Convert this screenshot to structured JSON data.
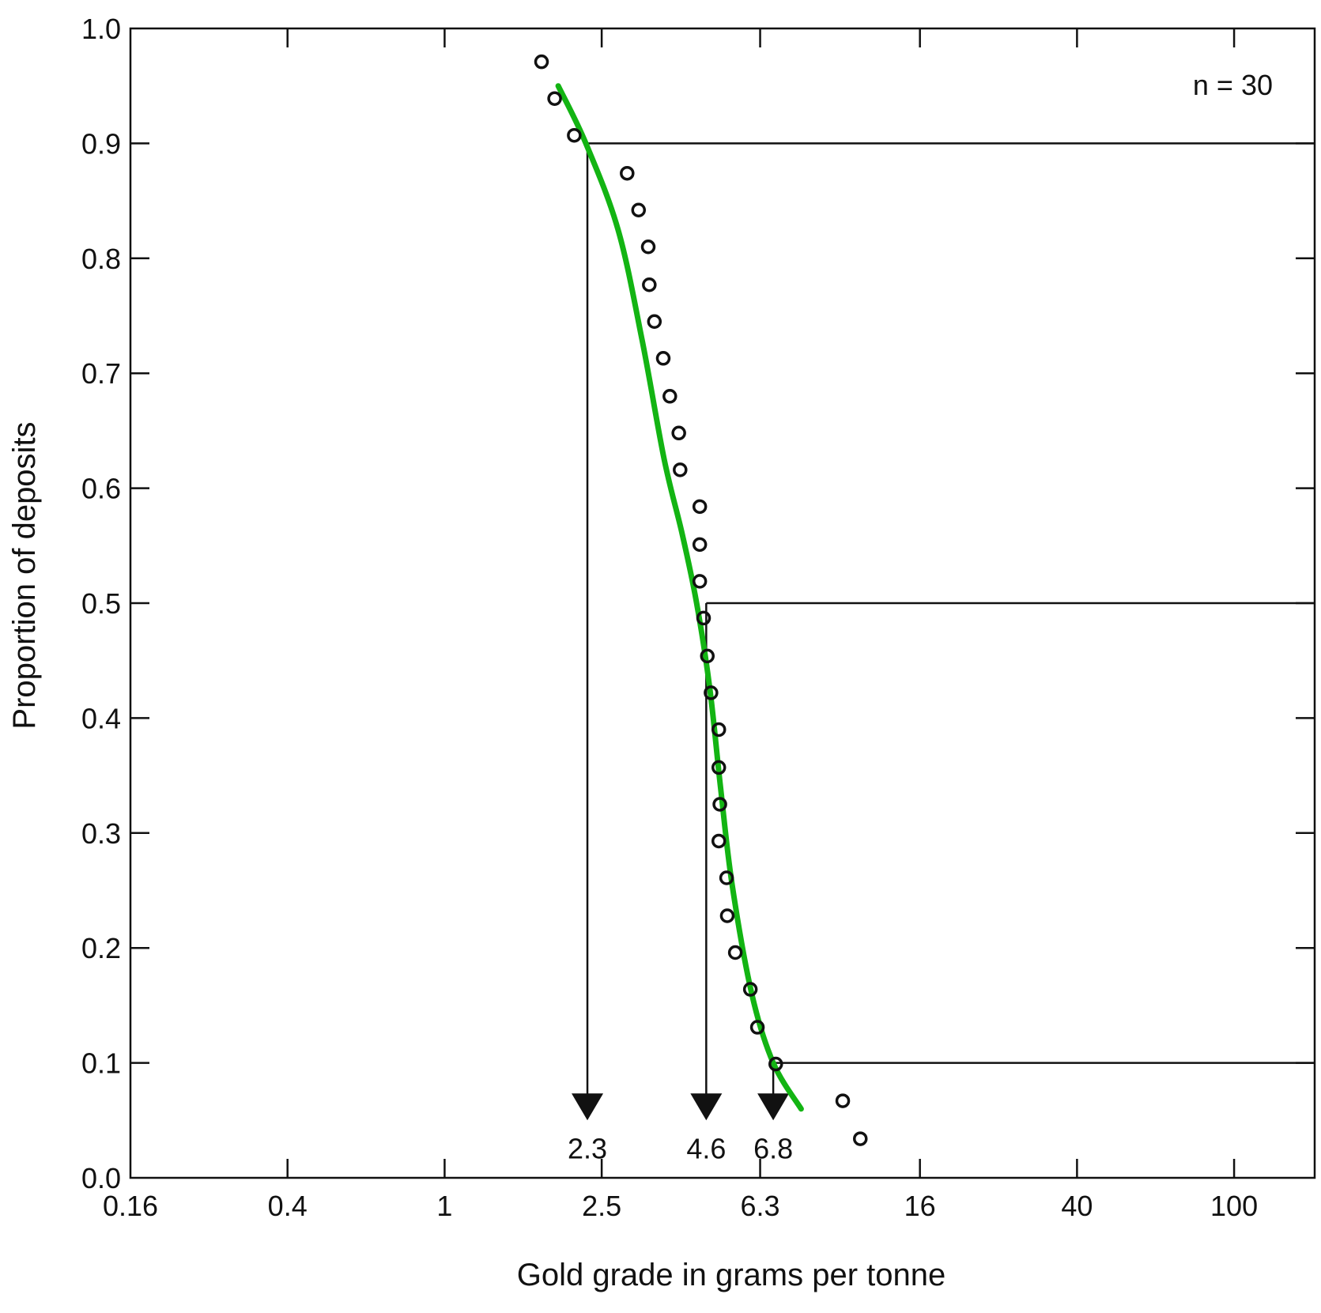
{
  "chart_data": {
    "type": "scatter",
    "xlabel": "Gold grade in grams per tonne",
    "ylabel": "Proportion of deposits",
    "x_scale": "log",
    "xlim": [
      0.16,
      160
    ],
    "ylim": [
      0,
      1.0
    ],
    "x_ticks": [
      {
        "value": 0.16,
        "label": "0.16"
      },
      {
        "value": 0.4,
        "label": "0.4"
      },
      {
        "value": 1,
        "label": "1"
      },
      {
        "value": 2.5,
        "label": "2.5"
      },
      {
        "value": 6.3,
        "label": "6.3"
      },
      {
        "value": 16,
        "label": "16"
      },
      {
        "value": 40,
        "label": "40"
      },
      {
        "value": 100,
        "label": "100"
      }
    ],
    "y_ticks": [
      {
        "value": 0.0,
        "label": "0.0"
      },
      {
        "value": 0.1,
        "label": "0.1"
      },
      {
        "value": 0.2,
        "label": "0.2"
      },
      {
        "value": 0.3,
        "label": "0.3"
      },
      {
        "value": 0.4,
        "label": "0.4"
      },
      {
        "value": 0.5,
        "label": "0.5"
      },
      {
        "value": 0.6,
        "label": "0.6"
      },
      {
        "value": 0.7,
        "label": "0.7"
      },
      {
        "value": 0.8,
        "label": "0.8"
      },
      {
        "value": 0.9,
        "label": "0.9"
      },
      {
        "value": 1.0,
        "label": "1.0"
      }
    ],
    "grid": false,
    "sample_size_label": "n = 30",
    "points": [
      {
        "x": 1.76,
        "y": 0.971
      },
      {
        "x": 1.9,
        "y": 0.939
      },
      {
        "x": 2.13,
        "y": 0.907
      },
      {
        "x": 2.9,
        "y": 0.874
      },
      {
        "x": 3.1,
        "y": 0.842
      },
      {
        "x": 3.28,
        "y": 0.81
      },
      {
        "x": 3.3,
        "y": 0.777
      },
      {
        "x": 3.4,
        "y": 0.745
      },
      {
        "x": 3.58,
        "y": 0.713
      },
      {
        "x": 3.72,
        "y": 0.68
      },
      {
        "x": 3.92,
        "y": 0.648
      },
      {
        "x": 3.95,
        "y": 0.616
      },
      {
        "x": 4.43,
        "y": 0.584
      },
      {
        "x": 4.43,
        "y": 0.551
      },
      {
        "x": 4.43,
        "y": 0.519
      },
      {
        "x": 4.53,
        "y": 0.487
      },
      {
        "x": 4.63,
        "y": 0.454
      },
      {
        "x": 4.73,
        "y": 0.422
      },
      {
        "x": 4.95,
        "y": 0.39
      },
      {
        "x": 4.95,
        "y": 0.357
      },
      {
        "x": 4.98,
        "y": 0.325
      },
      {
        "x": 4.95,
        "y": 0.293
      },
      {
        "x": 5.18,
        "y": 0.261
      },
      {
        "x": 5.2,
        "y": 0.228
      },
      {
        "x": 5.45,
        "y": 0.196
      },
      {
        "x": 5.95,
        "y": 0.164
      },
      {
        "x": 6.2,
        "y": 0.131
      },
      {
        "x": 6.9,
        "y": 0.099
      },
      {
        "x": 10.2,
        "y": 0.067
      },
      {
        "x": 11.3,
        "y": 0.034
      }
    ],
    "fitted_curve": {
      "color": "#13b413",
      "points": [
        {
          "x": 1.94,
          "y": 0.95
        },
        {
          "x": 2.28,
          "y": 0.9
        },
        {
          "x": 2.75,
          "y": 0.825
        },
        {
          "x": 3.16,
          "y": 0.73
        },
        {
          "x": 3.6,
          "y": 0.625
        },
        {
          "x": 4.0,
          "y": 0.56
        },
        {
          "x": 4.35,
          "y": 0.5
        },
        {
          "x": 4.7,
          "y": 0.425
        },
        {
          "x": 5.0,
          "y": 0.34
        },
        {
          "x": 5.35,
          "y": 0.255
        },
        {
          "x": 6.0,
          "y": 0.16
        },
        {
          "x": 6.8,
          "y": 0.1
        },
        {
          "x": 8.0,
          "y": 0.06
        }
      ]
    },
    "percentile_markers": [
      {
        "proportion": 0.9,
        "grade": 2.3,
        "label": "2.3"
      },
      {
        "proportion": 0.5,
        "grade": 4.6,
        "label": "4.6"
      },
      {
        "proportion": 0.1,
        "grade": 6.8,
        "label": "6.8"
      }
    ]
  }
}
